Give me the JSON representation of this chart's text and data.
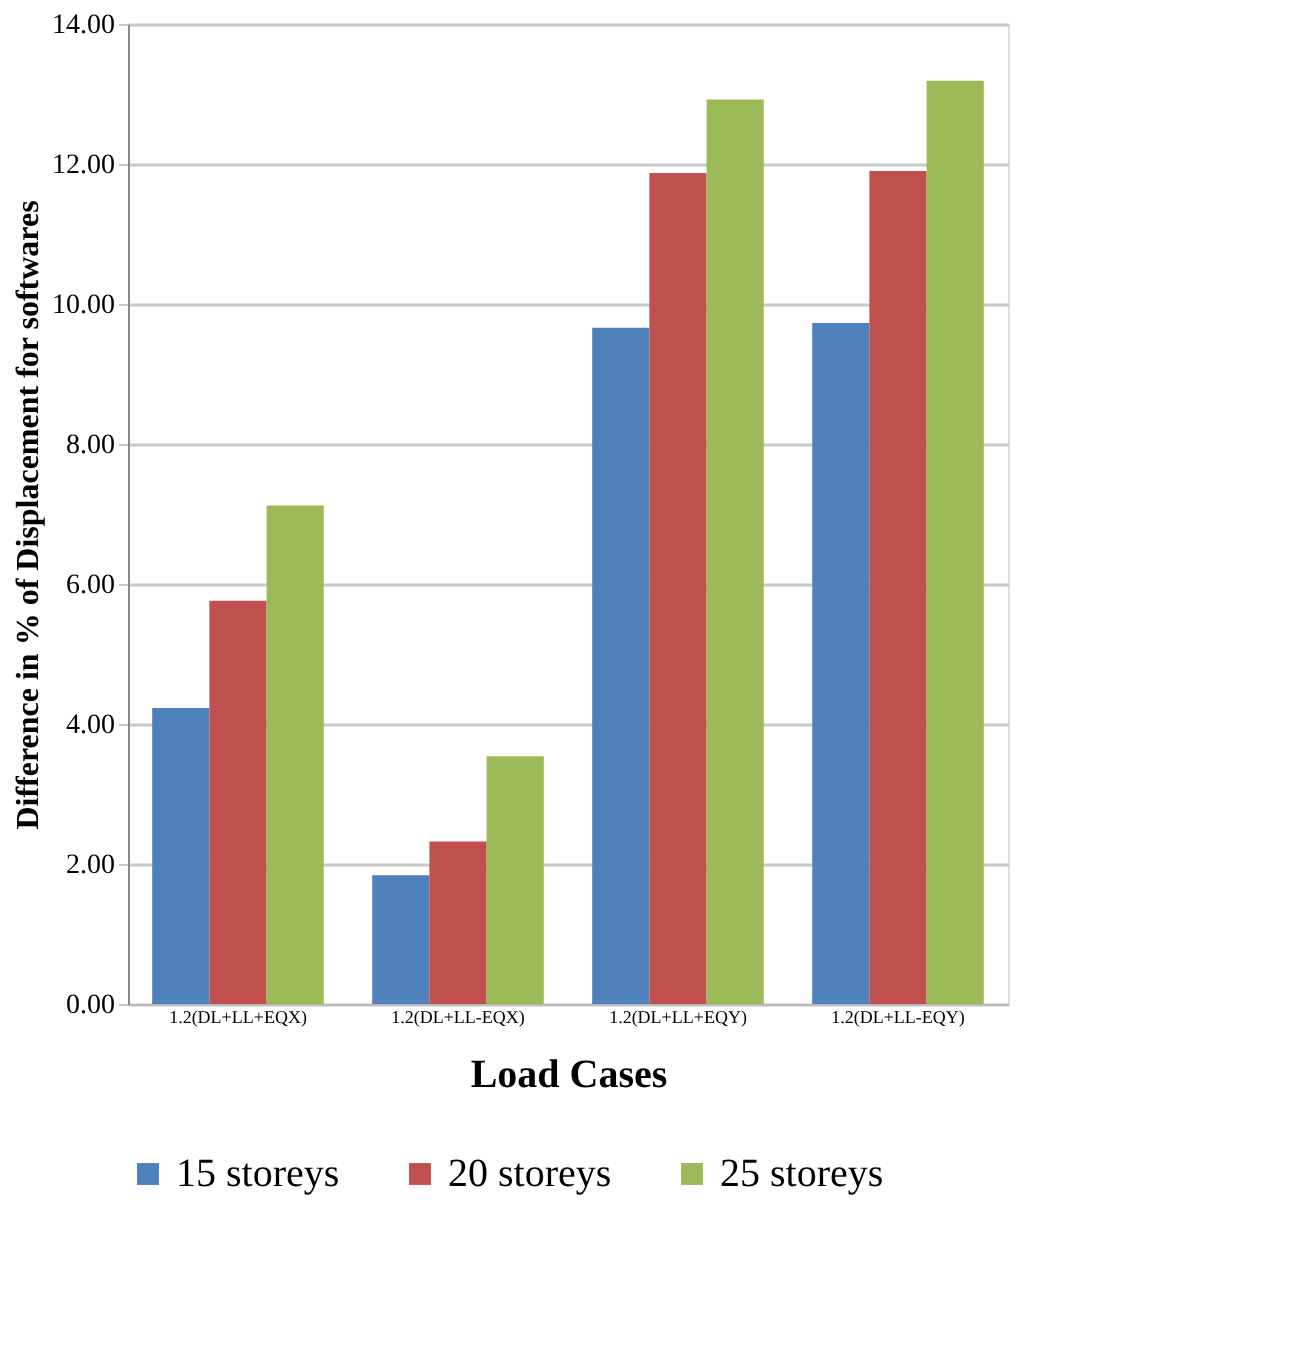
{
  "chart_data": {
    "type": "bar",
    "xlabel": "Load Cases",
    "ylabel": "Difference in % of Displacement for softwares",
    "categories": [
      "1.2(DL+LL+EQX)",
      "1.2(DL+LL-EQX)",
      "1.2(DL+LL+EQY)",
      "1.2(DL+LL-EQY)"
    ],
    "series": [
      {
        "name": "15 storeys",
        "color": "#4f81bd",
        "values": [
          4.23,
          1.84,
          9.66,
          9.73
        ]
      },
      {
        "name": "20 storeys",
        "color": "#c0504d",
        "values": [
          5.76,
          2.32,
          11.87,
          11.9
        ]
      },
      {
        "name": "25 storeys",
        "color": "#9bbb59",
        "values": [
          7.12,
          3.54,
          12.92,
          13.19
        ]
      }
    ],
    "ylim": [
      0,
      14
    ],
    "yticks": [
      {
        "value": 0,
        "label": "0.00"
      },
      {
        "value": 2,
        "label": "2.00"
      },
      {
        "value": 4,
        "label": "4.00"
      },
      {
        "value": 6,
        "label": "6.00"
      },
      {
        "value": 8,
        "label": "8.00"
      },
      {
        "value": 10,
        "label": "10.00"
      },
      {
        "value": 12,
        "label": "12.00"
      },
      {
        "value": 14,
        "label": "14.00"
      }
    ],
    "grid": "y",
    "legend": "bottom"
  }
}
